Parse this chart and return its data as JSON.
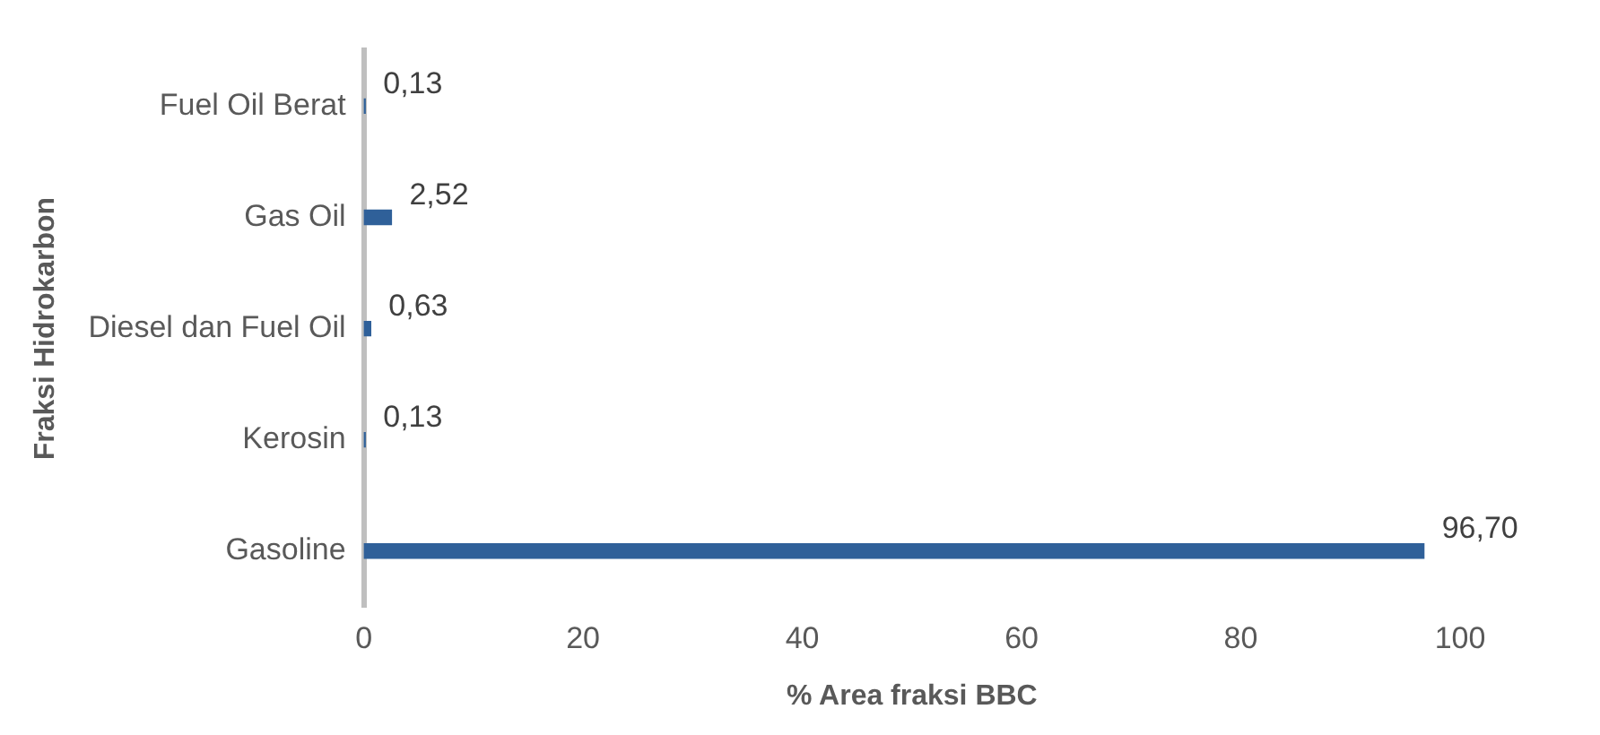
{
  "chart_data": {
    "type": "bar",
    "orientation": "horizontal",
    "xlabel": "% Area fraksi BBC",
    "ylabel": "Fraksi Hidrokarbon",
    "categories": [
      "Fuel Oil Berat",
      "Gas Oil",
      "Diesel dan Fuel Oil",
      "Kerosin",
      "Gasoline"
    ],
    "values": [
      0.13,
      2.52,
      0.63,
      0.13,
      96.7
    ],
    "value_labels": [
      "0,13",
      "2,52",
      "0,63",
      "0,13",
      "96,70"
    ],
    "color": "#2f6099",
    "xlim": [
      0,
      100
    ],
    "xticks": [
      0,
      20,
      40,
      60,
      80,
      100
    ],
    "grid": false,
    "legend": false
  }
}
